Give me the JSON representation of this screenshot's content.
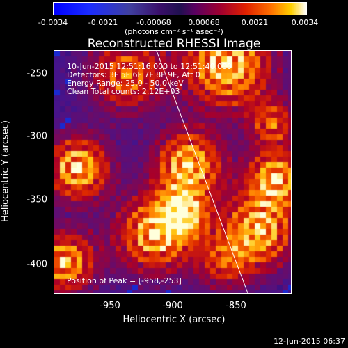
{
  "colorbar": {
    "ticks": [
      "-0.0034",
      "-0.0021",
      "-0.00068",
      "0.00068",
      "0.0021",
      "0.0034"
    ],
    "unit_label": "(photons cm⁻² s⁻¹ asec⁻²)"
  },
  "title": "Reconstructed RHESSI Image",
  "annotations": {
    "time": "10-Jun-2015 12:51:16.000 to 12:51:40.000",
    "detectors": "Detectors: 3F 5F 6F 7F 8F 9F, Att 0",
    "energy": "Energy Range: 25.0 - 50.0 keV",
    "clean": "Clean     Total counts: 2.12E+03",
    "peak": "Position of Peak = [-958,-253]"
  },
  "axes": {
    "xlabel": "Heliocentric X (arcsec)",
    "ylabel": "Heliocentric Y (arcsec)",
    "xticks": [
      "-950",
      "-900",
      "-850"
    ],
    "yticks": [
      "-250",
      "-300",
      "-350",
      "-400"
    ]
  },
  "footer_date": "12-Jun-2015 06:37"
}
